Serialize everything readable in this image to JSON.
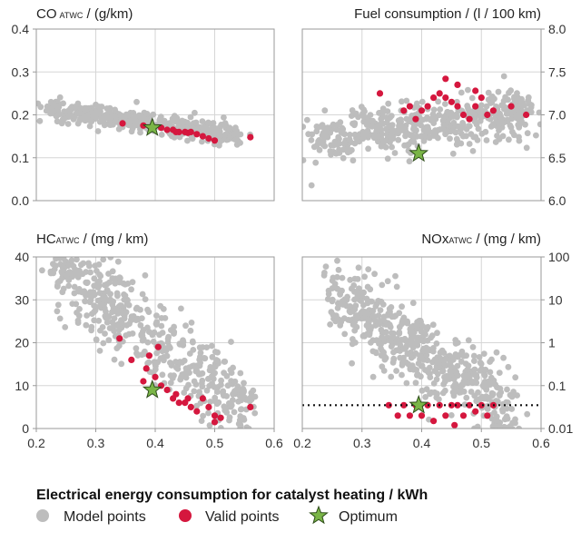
{
  "xlabel": "Electrical energy consumption for catalyst heating / kWh",
  "legend": [
    {
      "label": "Model points",
      "color": "#bdbdbd",
      "marker": "circle"
    },
    {
      "label": "Valid points",
      "color": "#d5173e",
      "marker": "circle"
    },
    {
      "label": "Optimum",
      "color": "#7ab547",
      "marker": "star"
    }
  ],
  "colors": {
    "model": "#bdbdbd",
    "valid": "#d5173e",
    "optimum": "#7ab547",
    "optimum_edge": "#2e4d1a"
  },
  "chart_data": [
    {
      "type": "scatter",
      "title_main": "CO",
      "title_sub": "ATWC",
      "title_unit": " / (g/km)",
      "title_align": "left",
      "y_axis_side": "left",
      "xlim": [
        0.2,
        0.6
      ],
      "ylim": [
        0.0,
        0.4
      ],
      "yscale": "linear",
      "yticks": [
        0.0,
        0.1,
        0.2,
        0.3,
        0.4
      ],
      "ytick_labels": [
        "0.0",
        "0.1",
        "0.2",
        "0.3",
        "0.4"
      ],
      "show_xticks": false,
      "grid": true,
      "model_cloud": {
        "x_start": 0.22,
        "x_end": 0.54,
        "y_start": 0.215,
        "y_end": 0.15,
        "spread": 0.012,
        "count": 420
      },
      "valid_points": [
        [
          0.345,
          0.18
        ],
        [
          0.38,
          0.175
        ],
        [
          0.41,
          0.17
        ],
        [
          0.43,
          0.165
        ],
        [
          0.44,
          0.16
        ],
        [
          0.45,
          0.16
        ],
        [
          0.455,
          0.158
        ],
        [
          0.46,
          0.16
        ],
        [
          0.47,
          0.155
        ],
        [
          0.48,
          0.15
        ],
        [
          0.49,
          0.145
        ],
        [
          0.5,
          0.14
        ],
        [
          0.42,
          0.165
        ],
        [
          0.435,
          0.16
        ],
        [
          0.56,
          0.148
        ]
      ],
      "optimum": [
        0.395,
        0.17
      ]
    },
    {
      "type": "scatter",
      "title_main": "Fuel consumption / (l / 100 km)",
      "title_sub": "",
      "title_unit": "",
      "title_align": "right",
      "y_axis_side": "right",
      "xlim": [
        0.2,
        0.6
      ],
      "ylim": [
        6.0,
        8.0
      ],
      "yscale": "linear",
      "yticks": [
        6.0,
        6.5,
        7.0,
        7.5,
        8.0
      ],
      "ytick_labels": [
        "6.0",
        "6.5",
        "7.0",
        "7.5",
        "8.0"
      ],
      "show_xticks": false,
      "grid": true,
      "model_cloud": {
        "x_start": 0.22,
        "x_end": 0.58,
        "y_start": 6.7,
        "y_end": 7.05,
        "spread": 0.14,
        "count": 520
      },
      "valid_points": [
        [
          0.37,
          7.05
        ],
        [
          0.38,
          7.1
        ],
        [
          0.39,
          6.95
        ],
        [
          0.4,
          7.05
        ],
        [
          0.41,
          7.1
        ],
        [
          0.42,
          7.2
        ],
        [
          0.43,
          7.25
        ],
        [
          0.44,
          7.2
        ],
        [
          0.45,
          7.15
        ],
        [
          0.46,
          7.1
        ],
        [
          0.47,
          7.0
        ],
        [
          0.48,
          6.95
        ],
        [
          0.49,
          7.1
        ],
        [
          0.5,
          7.2
        ],
        [
          0.52,
          7.05
        ],
        [
          0.44,
          7.42
        ],
        [
          0.46,
          7.35
        ],
        [
          0.49,
          7.28
        ],
        [
          0.33,
          7.25
        ],
        [
          0.55,
          7.1
        ],
        [
          0.575,
          7.0
        ],
        [
          0.51,
          7.0
        ]
      ],
      "optimum": [
        0.395,
        6.55
      ]
    },
    {
      "type": "scatter",
      "title_main": "HC",
      "title_sub": "ATWC",
      "title_unit": " / (mg / km)",
      "title_align": "left",
      "y_axis_side": "left",
      "xlim": [
        0.2,
        0.6
      ],
      "ylim": [
        0,
        40
      ],
      "yscale": "linear",
      "yticks": [
        0,
        10,
        20,
        30,
        40
      ],
      "ytick_labels": [
        "0",
        "10",
        "20",
        "30",
        "40"
      ],
      "show_xticks": true,
      "xticks": [
        0.2,
        0.3,
        0.4,
        0.5,
        0.6
      ],
      "xtick_labels": [
        "0.2",
        "0.3",
        "0.4",
        "0.5",
        "0.6"
      ],
      "grid": true,
      "model_cloud": {
        "x_start": 0.23,
        "x_end": 0.56,
        "y_start": 38,
        "y_end": 4,
        "spread": 4.5,
        "count": 520
      },
      "valid_points": [
        [
          0.34,
          21
        ],
        [
          0.36,
          16
        ],
        [
          0.385,
          14
        ],
        [
          0.39,
          17
        ],
        [
          0.4,
          12
        ],
        [
          0.41,
          10
        ],
        [
          0.42,
          9
        ],
        [
          0.43,
          7
        ],
        [
          0.44,
          6
        ],
        [
          0.45,
          6
        ],
        [
          0.46,
          5
        ],
        [
          0.47,
          4
        ],
        [
          0.48,
          7
        ],
        [
          0.49,
          5
        ],
        [
          0.5,
          3
        ],
        [
          0.5,
          1.5
        ],
        [
          0.51,
          2.5
        ],
        [
          0.56,
          5
        ],
        [
          0.405,
          19
        ],
        [
          0.38,
          11
        ],
        [
          0.435,
          8
        ],
        [
          0.455,
          7
        ]
      ],
      "optimum": [
        0.395,
        9
      ]
    },
    {
      "type": "scatter",
      "title_main": "NOx",
      "title_sub": "ATWC",
      "title_unit": " / (mg / km)",
      "title_align": "right",
      "y_axis_side": "right",
      "xlim": [
        0.2,
        0.6
      ],
      "ylim": [
        0.01,
        100
      ],
      "yscale": "log",
      "yticks": [
        0.01,
        0.1,
        1,
        10,
        100
      ],
      "ytick_labels": [
        "0.01",
        "0.1",
        "1",
        "10",
        "100"
      ],
      "show_xticks": true,
      "xticks": [
        0.2,
        0.3,
        0.4,
        0.5,
        0.6
      ],
      "xtick_labels": [
        "0.2",
        "0.3",
        "0.4",
        "0.5",
        "0.6"
      ],
      "grid": true,
      "reference_line": {
        "y": 0.035,
        "style": "dotted"
      },
      "model_cloud": {
        "x_start": 0.25,
        "x_end": 0.55,
        "y_start": 12,
        "y_end": 0.03,
        "spread_log": 0.45,
        "count": 560
      },
      "valid_points": [
        [
          0.345,
          0.035
        ],
        [
          0.36,
          0.02
        ],
        [
          0.37,
          0.035
        ],
        [
          0.38,
          0.02
        ],
        [
          0.39,
          0.035
        ],
        [
          0.4,
          0.02
        ],
        [
          0.41,
          0.035
        ],
        [
          0.42,
          0.015
        ],
        [
          0.43,
          0.035
        ],
        [
          0.44,
          0.02
        ],
        [
          0.45,
          0.035
        ],
        [
          0.46,
          0.035
        ],
        [
          0.47,
          0.02
        ],
        [
          0.48,
          0.035
        ],
        [
          0.49,
          0.025
        ],
        [
          0.5,
          0.035
        ],
        [
          0.51,
          0.02
        ],
        [
          0.52,
          0.035
        ],
        [
          0.455,
          0.012
        ]
      ],
      "optimum": [
        0.395,
        0.035
      ]
    }
  ]
}
